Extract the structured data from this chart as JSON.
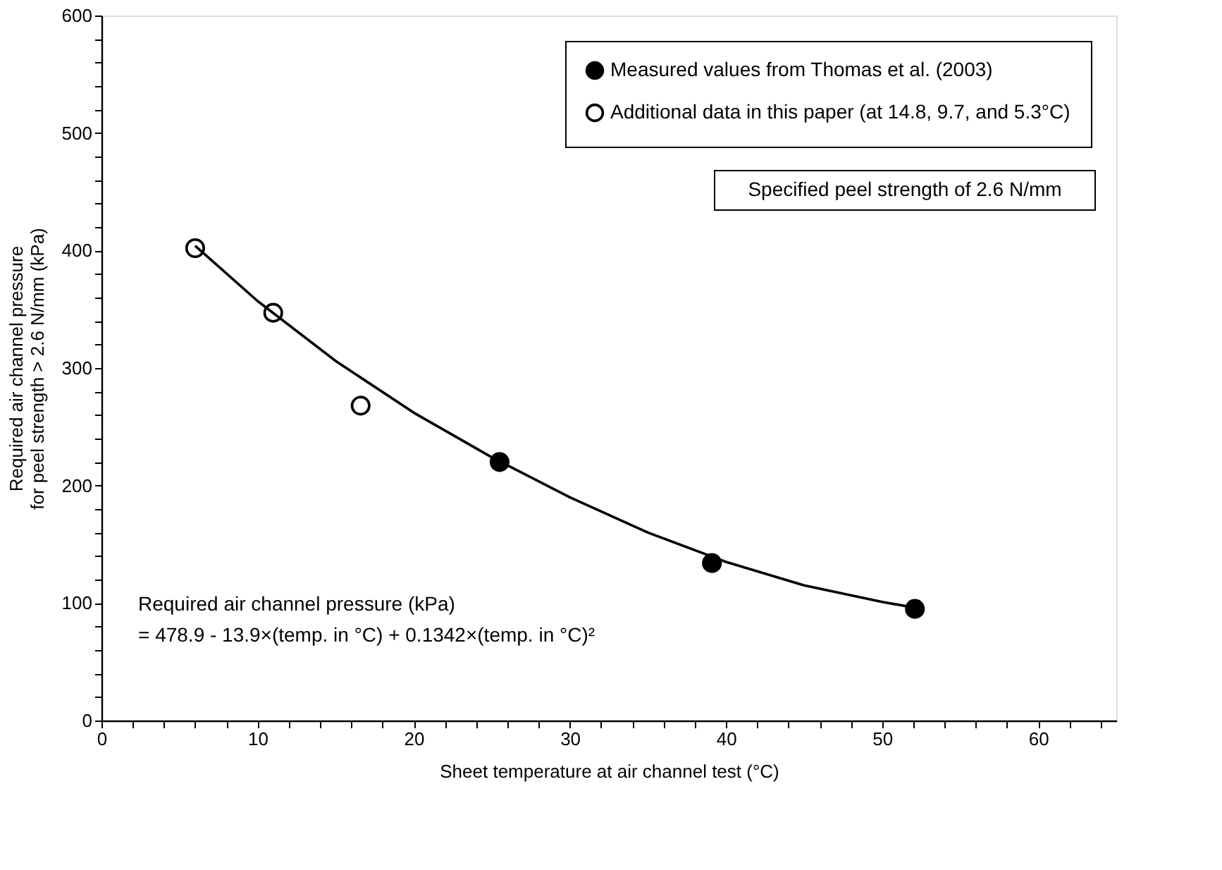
{
  "chart_data": {
    "type": "scatter",
    "xlabel": "Sheet temperature at air channel test (°C)",
    "ylabel": "Required air channel pressure\nfor peel strength > 2.6 N/mm (kPa)",
    "xlim": [
      0,
      65
    ],
    "ylim": [
      0,
      600
    ],
    "xticks": [
      0,
      {
        "value": 2,
        "label": null
      },
      {
        "value": 4,
        "label": null
      },
      {
        "value": 6,
        "label": null
      },
      {
        "value": 8,
        "label": null
      },
      10,
      {
        "value": 12,
        "label": null
      },
      {
        "value": 14,
        "label": null
      },
      {
        "value": 16,
        "label": null
      },
      {
        "value": 18,
        "label": null
      },
      20,
      {
        "value": 22,
        "label": null
      },
      {
        "value": 24,
        "label": null
      },
      {
        "value": 26,
        "label": null
      },
      {
        "value": 28,
        "label": null
      },
      30,
      {
        "value": 32,
        "label": null
      },
      {
        "value": 34,
        "label": null
      },
      {
        "value": 36,
        "label": null
      },
      {
        "value": 38,
        "label": null
      },
      40,
      {
        "value": 42,
        "label": null
      },
      {
        "value": 44,
        "label": null
      },
      {
        "value": 46,
        "label": null
      },
      {
        "value": 48,
        "label": null
      },
      50,
      {
        "value": 52,
        "label": null
      },
      {
        "value": 54,
        "label": null
      },
      {
        "value": 56,
        "label": null
      },
      {
        "value": 58,
        "label": null
      },
      60,
      {
        "value": 62,
        "label": null
      },
      {
        "value": 64,
        "label": null
      }
    ],
    "yticks": [
      0,
      {
        "value": 20,
        "label": null
      },
      {
        "value": 40,
        "label": null
      },
      {
        "value": 60,
        "label": null
      },
      {
        "value": 80,
        "label": null
      },
      100,
      {
        "value": 120,
        "label": null
      },
      {
        "value": 140,
        "label": null
      },
      {
        "value": 160,
        "label": null
      },
      {
        "value": 180,
        "label": null
      },
      200,
      {
        "value": 220,
        "label": null
      },
      {
        "value": 240,
        "label": null
      },
      {
        "value": 260,
        "label": null
      },
      {
        "value": 280,
        "label": null
      },
      300,
      {
        "value": 320,
        "label": null
      },
      {
        "value": 340,
        "label": null
      },
      {
        "value": 360,
        "label": null
      },
      {
        "value": 380,
        "label": null
      },
      400,
      {
        "value": 420,
        "label": null
      },
      {
        "value": 440,
        "label": null
      },
      {
        "value": 460,
        "label": null
      },
      {
        "value": 480,
        "label": null
      },
      500,
      {
        "value": 520,
        "label": null
      },
      {
        "value": 540,
        "label": null
      },
      {
        "value": 560,
        "label": null
      },
      {
        "value": 580,
        "label": null
      },
      600
    ],
    "series": [
      {
        "name": "Measured values from Thomas et al. (2003)",
        "color": "#000000",
        "marker": "circle",
        "x": [
          25.5,
          39.1,
          52.1
        ],
        "values": [
          220,
          134,
          95
        ]
      },
      {
        "name": "Additional data in this paper (at 14.8, 9.7, and 5.3°C)",
        "color": "#ffffff",
        "marker": "circle",
        "x": [
          6.0,
          11.0,
          16.6
        ],
        "values": [
          402,
          347,
          268
        ]
      },
      {
        "type": "line",
        "color": "#000000",
        "line_style": "solid",
        "x": [
          6,
          10,
          15,
          20,
          25,
          30,
          35,
          40,
          45,
          50,
          52.1
        ],
        "values": [
          404,
          357,
          306,
          262,
          224,
          190,
          160,
          135,
          115,
          101,
          96
        ]
      }
    ],
    "annotations": [
      "Specified peel strength of 2.6 N/mm",
      "Required air channel pressure (kPa)",
      "= 478.9 - 13.9×(temp. in °C) + 0.1342×(temp. in °C)²"
    ],
    "legend": "top right",
    "grid": false
  }
}
